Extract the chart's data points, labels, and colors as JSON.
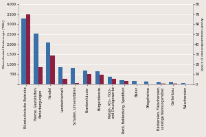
{
  "categories": [
    "Bürotechnische Betriebe",
    "Heime, Gaststätten,\nBeherbergungen",
    "Handel",
    "Landwirtschaft",
    "Schulen, Universitäten",
    "Krankenhäuser",
    "Bürgerdienste",
    "Metall-, Kfz-, Holz-,\nund Druckgewerbe",
    "Textil, Bekleidung, Spedition",
    "Bäder",
    "Pflegeheime",
    "Bäckereien, Fleischereien,\nsonstige Nahrungsmittel",
    "Gartenbau",
    "Wäschereien"
  ],
  "blue_values": [
    3300,
    2550,
    2100,
    850,
    820,
    690,
    640,
    370,
    220,
    160,
    120,
    110,
    110,
    70
  ],
  "red_values_right_axis": [
    70,
    17,
    29,
    5.5,
    1.5,
    10,
    9.5,
    5.5,
    3.5,
    0.3,
    0.3,
    1.0,
    1.0,
    0.3
  ],
  "left_label": "Wärmebedarf Endenergie [TWh]",
  "right_label": "Anzahl Gebäude/Betriebe [x 1.000]",
  "ylim_left": [
    0,
    4000
  ],
  "ylim_right": [
    0,
    80
  ],
  "yticks_left": [
    0,
    500,
    1000,
    1500,
    2000,
    2500,
    3000,
    3500,
    4000
  ],
  "yticks_right": [
    0,
    10,
    20,
    30,
    40,
    50,
    60,
    70,
    80
  ],
  "blue_color": "#3a6fa8",
  "red_color": "#8b2040",
  "background_color": "#ede8e3",
  "grid_color": "#ffffff",
  "bar_width": 0.35,
  "tick_fontsize": 3.5,
  "axis_label_fontsize": 3.2,
  "label_rotation": 90
}
